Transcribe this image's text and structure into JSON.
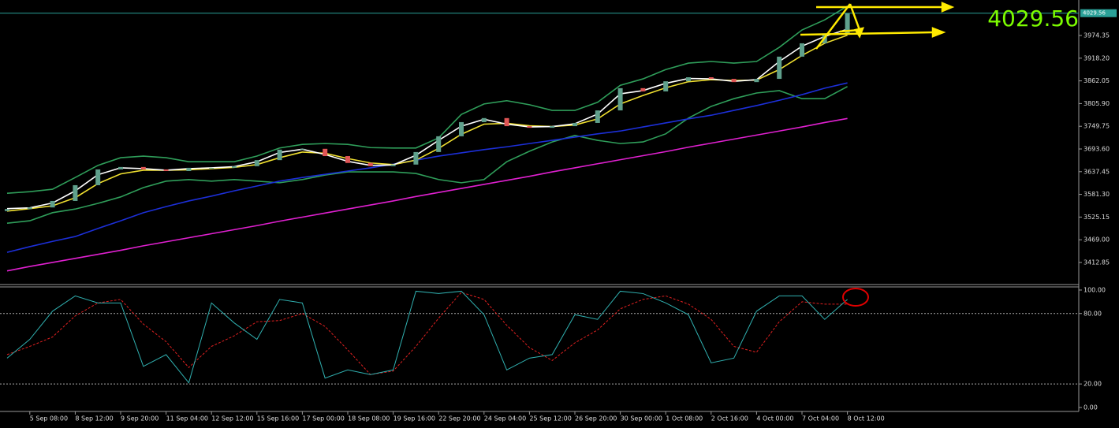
{
  "chart_data": [
    {
      "type": "candlestick",
      "categories": [
        null,
        "5 Sep 08:00",
        null,
        "8 Sep 12:00",
        null,
        "9 Sep 20:00",
        null,
        "11 Sep 04:00",
        null,
        "12 Sep 12:00",
        null,
        "15 Sep 16:00",
        null,
        "17 Sep 00:00",
        null,
        "18 Sep 08:00",
        null,
        "19 Sep 16:00",
        null,
        "22 Sep 20:00",
        null,
        "24 Sep 04:00",
        null,
        "25 Sep 12:00",
        null,
        "26 Sep 20:00",
        null,
        "30 Sep 00:00",
        null,
        "1 Oct 08:00",
        null,
        "2 Oct 16:00",
        null,
        "4 Oct 00:00",
        null,
        "7 Oct 04:00",
        null,
        "8 Oct 12:00"
      ],
      "open": [
        3540,
        3545,
        3549,
        3565,
        3604,
        3643,
        3649,
        3643,
        3639,
        3647,
        3647,
        3651,
        3666,
        3692,
        3694,
        3676,
        3659,
        3651,
        3655,
        3686,
        3725,
        3760,
        3770,
        3750,
        3746,
        3750,
        3758,
        3789,
        3844,
        3836,
        3861,
        3871,
        3867,
        3859,
        3867,
        3922,
        3955,
        3976
      ],
      "close": [
        3545,
        3549,
        3565,
        3604,
        3643,
        3649,
        3643,
        3639,
        3647,
        3647,
        3651,
        3666,
        3692,
        3694,
        3676,
        3659,
        3651,
        3655,
        3686,
        3725,
        3760,
        3770,
        3750,
        3746,
        3750,
        3758,
        3789,
        3844,
        3836,
        3861,
        3871,
        3867,
        3859,
        3867,
        3922,
        3955,
        3976,
        4029.56
      ],
      "up_color": "#5fa08c",
      "down_color": "#e05555",
      "series": [
        {
          "color": "#2f9e5a",
          "values": [
            3584,
            3588,
            3594,
            3623,
            3653,
            3672,
            3676,
            3672,
            3662,
            3662,
            3662,
            3676,
            3696,
            3705,
            3707,
            3705,
            3697,
            3696,
            3696,
            3721,
            3779,
            3805,
            3813,
            3803,
            3789,
            3789,
            3809,
            3851,
            3867,
            3890,
            3906,
            3910,
            3906,
            3910,
            3945,
            3988,
            4013,
            4047
          ]
        },
        {
          "color": "#2f9e5a",
          "values": [
            3510,
            3516,
            3536,
            3545,
            3559,
            3575,
            3598,
            3614,
            3618,
            3614,
            3618,
            3614,
            3610,
            3618,
            3629,
            3637,
            3637,
            3637,
            3633,
            3618,
            3610,
            3618,
            3662,
            3688,
            3711,
            3727,
            3715,
            3707,
            3711,
            3731,
            3770,
            3799,
            3818,
            3832,
            3838,
            3818,
            3818,
            3848
          ]
        },
        {
          "color": "#1c2fd8",
          "values": [
            3438,
            3452,
            3465,
            3477,
            3497,
            3516,
            3536,
            3551,
            3565,
            3577,
            3590,
            3602,
            3614,
            3623,
            3631,
            3639,
            3647,
            3656,
            3666,
            3676,
            3684,
            3692,
            3699,
            3707,
            3715,
            3723,
            3731,
            3738,
            3748,
            3758,
            3768,
            3777,
            3789,
            3801,
            3814,
            3828,
            3844,
            3857
          ]
        },
        {
          "color": "#e020d0",
          "values": [
            3392,
            3403,
            3413,
            3423,
            3433,
            3443,
            3454,
            3464,
            3474,
            3484,
            3494,
            3504,
            3515,
            3525,
            3535,
            3545,
            3555,
            3565,
            3576,
            3586,
            3596,
            3606,
            3616,
            3626,
            3637,
            3647,
            3657,
            3667,
            3677,
            3687,
            3698,
            3708,
            3718,
            3728,
            3738,
            3748,
            3759,
            3769
          ]
        },
        {
          "color": "#f0e030",
          "values": [
            3540,
            3546,
            3553,
            3573,
            3608,
            3632,
            3641,
            3641,
            3642,
            3645,
            3648,
            3655,
            3672,
            3686,
            3683,
            3670,
            3659,
            3655,
            3666,
            3695,
            3730,
            3755,
            3757,
            3751,
            3749,
            3753,
            3768,
            3805,
            3826,
            3845,
            3860,
            3865,
            3863,
            3864,
            3890,
            3925,
            3955,
            3975
          ]
        },
        {
          "color": "#ffffff",
          "values": [
            3546,
            3548,
            3560,
            3590,
            3630,
            3647,
            3645,
            3641,
            3645,
            3647,
            3650,
            3662,
            3685,
            3693,
            3680,
            3663,
            3653,
            3654,
            3678,
            3715,
            3750,
            3767,
            3755,
            3748,
            3749,
            3756,
            3780,
            3830,
            3838,
            3856,
            3868,
            3867,
            3861,
            3865,
            3910,
            3948,
            3972,
            3990
          ]
        }
      ],
      "ylim": [
        3360.2,
        4062.1
      ],
      "yticks": [
        3974.35,
        {
          "value": 3918.2,
          "label": "3918.20"
        },
        {
          "value": 3862.05,
          "label": "3862.05"
        },
        {
          "value": 3805.9,
          "label": "3805.90"
        },
        {
          "value": 3749.75,
          "label": "3749.75"
        },
        {
          "value": 3693.6,
          "label": "3693.60"
        },
        3637.45,
        {
          "value": 3581.3,
          "label": "3581.30"
        },
        {
          "value": 3525.15,
          "label": "3525.15"
        },
        {
          "value": 3469,
          "label": "3469.00"
        },
        3412.85
      ],
      "current_price": 4029.56,
      "current_price_color": "#2aa198"
    },
    {
      "type": "line",
      "series": [
        {
          "color": "#e02020",
          "dashed": true,
          "values": [
            45,
            52,
            60,
            78,
            89,
            92,
            71,
            56,
            34,
            52,
            61,
            73,
            74,
            80,
            69,
            49,
            28,
            31,
            52,
            76,
            98,
            92,
            70,
            51,
            40,
            55,
            66,
            84,
            92,
            95,
            88,
            75,
            52,
            47,
            73,
            90,
            88,
            88
          ]
        },
        {
          "color": "#30b0b0",
          "dashed": false,
          "values": [
            42,
            58,
            82,
            95,
            89,
            89,
            35,
            45,
            21,
            89,
            72,
            58,
            92,
            89,
            25,
            32,
            28,
            32,
            99,
            97,
            99,
            79,
            32,
            42,
            45,
            79,
            75,
            99,
            97,
            89,
            79,
            38,
            42,
            82,
            95,
            95,
            75,
            92
          ]
        }
      ],
      "ylim": [
        -3.4,
        104
      ],
      "yticks": [
        {
          "value": 100,
          "label": "100.00"
        },
        {
          "value": 80,
          "label": "80.00"
        },
        {
          "value": 20,
          "label": "20.00"
        },
        {
          "value": 0,
          "label": "0.00"
        }
      ],
      "levels": [
        80,
        20
      ]
    }
  ]
}
